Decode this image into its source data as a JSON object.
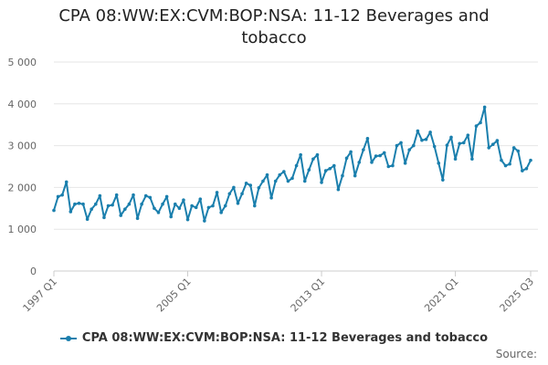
{
  "chart_data": {
    "type": "line",
    "title": "CPA 08:WW:EX:CVM:BOP:NSA: 11-12 Beverages and tobacco",
    "xlabel": "",
    "ylabel": "",
    "ylim": [
      0,
      5000
    ],
    "yticks": [
      0,
      1000,
      2000,
      3000,
      4000,
      5000
    ],
    "ytick_labels": [
      "0",
      "1 000",
      "2 000",
      "3 000",
      "4 000",
      "5 000"
    ],
    "xtick_labels": [
      "1997 Q1",
      "2005 Q1",
      "2013 Q1",
      "2021 Q1",
      "2025 Q3"
    ],
    "xtick_indices": [
      0,
      32,
      64,
      96,
      114
    ],
    "legend_position": "bottom",
    "series": [
      {
        "name": "CPA 08:WW:EX:CVM:BOP:NSA: 11-12 Beverages and tobacco",
        "color": "#1a7fad",
        "values": [
          1450,
          1780,
          1820,
          2130,
          1420,
          1600,
          1620,
          1600,
          1240,
          1480,
          1600,
          1800,
          1280,
          1560,
          1580,
          1820,
          1330,
          1480,
          1600,
          1820,
          1260,
          1600,
          1800,
          1760,
          1500,
          1400,
          1600,
          1780,
          1300,
          1600,
          1500,
          1700,
          1230,
          1560,
          1520,
          1720,
          1200,
          1520,
          1560,
          1880,
          1400,
          1560,
          1850,
          2000,
          1620,
          1850,
          2100,
          2050,
          1560,
          1990,
          2150,
          2300,
          1750,
          2150,
          2300,
          2380,
          2150,
          2220,
          2520,
          2780,
          2150,
          2420,
          2680,
          2780,
          2120,
          2400,
          2450,
          2520,
          1950,
          2280,
          2700,
          2850,
          2280,
          2600,
          2900,
          3170,
          2600,
          2750,
          2760,
          2830,
          2500,
          2520,
          3000,
          3070,
          2580,
          2900,
          3000,
          3350,
          3130,
          3150,
          3320,
          2980,
          2580,
          2180,
          3010,
          3200,
          2680,
          3050,
          3070,
          3250,
          2680,
          3470,
          3550,
          3920,
          2950,
          3030,
          3120,
          2650,
          2520,
          2560,
          2950,
          2870,
          2400,
          2450,
          2650
        ]
      }
    ]
  },
  "legend": {
    "label": "CPA 08:WW:EX:CVM:BOP:NSA: 11-12 Beverages and tobacco"
  },
  "footer": {
    "source_label": "Source:"
  }
}
